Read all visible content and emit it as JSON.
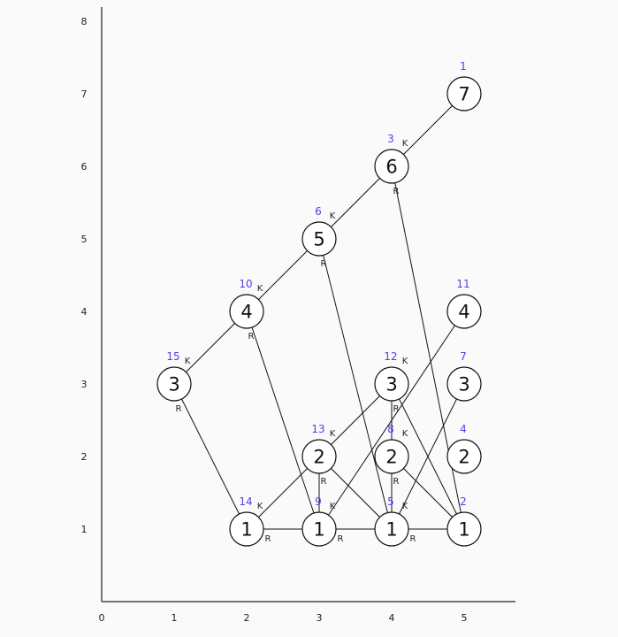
{
  "colors": {
    "background": "#fafafa",
    "ink": "#111111",
    "index_label": "#5b3bea"
  },
  "axes": {
    "x_ticks": [
      "0",
      "1",
      "2",
      "3",
      "4",
      "5"
    ],
    "y_ticks": [
      "1",
      "2",
      "3",
      "4",
      "5",
      "6",
      "7",
      "8"
    ],
    "xlim": [
      0,
      5.7
    ],
    "ylim": [
      0,
      8
    ]
  },
  "nodes": [
    {
      "id": "n1",
      "x": 5,
      "y": 7,
      "value": "7",
      "index": "1",
      "k": false,
      "r": false
    },
    {
      "id": "n3",
      "x": 4,
      "y": 6,
      "value": "6",
      "index": "3",
      "k": true,
      "r": true
    },
    {
      "id": "n6",
      "x": 3,
      "y": 5,
      "value": "5",
      "index": "6",
      "k": true,
      "r": true
    },
    {
      "id": "n10",
      "x": 2,
      "y": 4,
      "value": "4",
      "index": "10",
      "k": true,
      "r": true
    },
    {
      "id": "n15",
      "x": 1,
      "y": 3,
      "value": "3",
      "index": "15",
      "k": true,
      "r": true
    },
    {
      "id": "n11",
      "x": 5,
      "y": 4,
      "value": "4",
      "index": "11",
      "k": false,
      "r": false
    },
    {
      "id": "n12",
      "x": 4,
      "y": 3,
      "value": "3",
      "index": "12",
      "k": true,
      "r": true
    },
    {
      "id": "n7",
      "x": 5,
      "y": 3,
      "value": "3",
      "index": "7",
      "k": false,
      "r": false
    },
    {
      "id": "n13",
      "x": 3,
      "y": 2,
      "value": "2",
      "index": "13",
      "k": true,
      "r": true
    },
    {
      "id": "n8",
      "x": 4,
      "y": 2,
      "value": "2",
      "index": "8",
      "k": true,
      "r": true
    },
    {
      "id": "n4",
      "x": 5,
      "y": 2,
      "value": "2",
      "index": "4",
      "k": false,
      "r": false
    },
    {
      "id": "n14",
      "x": 2,
      "y": 1,
      "value": "1",
      "index": "14",
      "k": true,
      "r": true
    },
    {
      "id": "n9",
      "x": 3,
      "y": 1,
      "value": "1",
      "index": "9",
      "k": true,
      "r": true
    },
    {
      "id": "n5",
      "x": 4,
      "y": 1,
      "value": "1",
      "index": "5",
      "k": true,
      "r": true
    },
    {
      "id": "n2",
      "x": 5,
      "y": 1,
      "value": "1",
      "index": "2",
      "k": false,
      "r": false
    }
  ],
  "edges": [
    [
      "n15",
      "n10"
    ],
    [
      "n10",
      "n6"
    ],
    [
      "n6",
      "n3"
    ],
    [
      "n3",
      "n1"
    ],
    [
      "n15",
      "n14"
    ],
    [
      "n10",
      "n9"
    ],
    [
      "n6",
      "n5"
    ],
    [
      "n3",
      "n2"
    ],
    [
      "n14",
      "n12"
    ],
    [
      "n14",
      "n9"
    ],
    [
      "n13",
      "n9"
    ],
    [
      "n13",
      "n5"
    ],
    [
      "n9",
      "n11"
    ],
    [
      "n9",
      "n5"
    ],
    [
      "n12",
      "n2"
    ],
    [
      "n12",
      "n5"
    ],
    [
      "n8",
      "n5"
    ],
    [
      "n8",
      "n2"
    ],
    [
      "n5",
      "n7"
    ],
    [
      "n5",
      "n2"
    ]
  ]
}
